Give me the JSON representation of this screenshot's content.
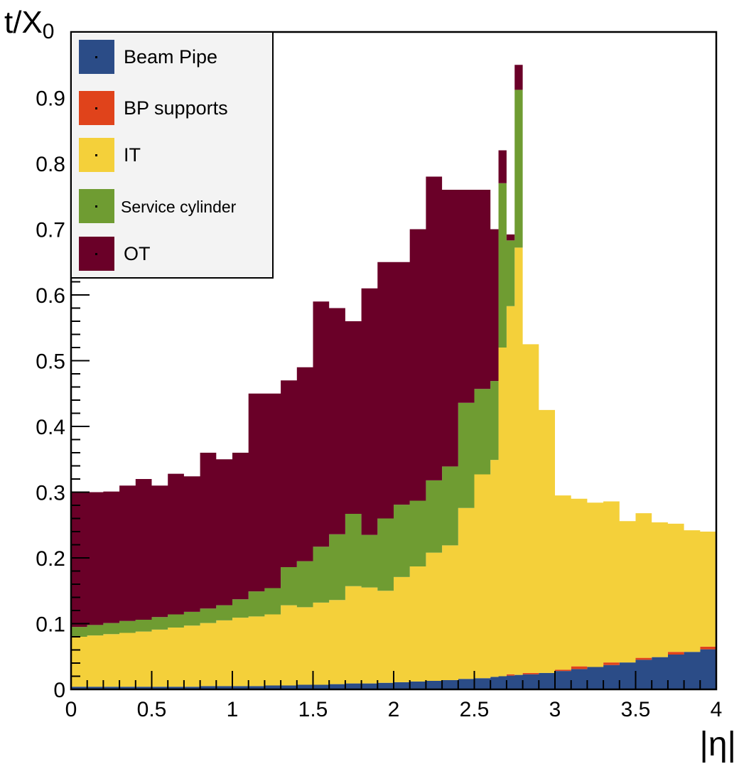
{
  "chart_data": {
    "type": "area",
    "stacked": true,
    "title": "",
    "xlabel": "|η|",
    "ylabel": "t/X",
    "ylabel_subscript": "0",
    "xlim": [
      0,
      4
    ],
    "ylim": [
      0,
      1.0
    ],
    "grid": false,
    "legend_position": "top-left",
    "x_ticks": [
      "0",
      "0.5",
      "1",
      "1.5",
      "2",
      "2.5",
      "3",
      "3.5",
      "4"
    ],
    "y_ticks": [
      "0",
      "0.1",
      "0.2",
      "0.3",
      "0.4",
      "0.5",
      "0.6",
      "0.7",
      "0.8",
      "0.9"
    ],
    "x": [
      0.0,
      0.1,
      0.2,
      0.3,
      0.4,
      0.5,
      0.6,
      0.7,
      0.8,
      0.9,
      1.0,
      1.1,
      1.2,
      1.3,
      1.4,
      1.5,
      1.6,
      1.7,
      1.8,
      1.9,
      2.0,
      2.1,
      2.2,
      2.3,
      2.4,
      2.5,
      2.6,
      2.65,
      2.7,
      2.75,
      2.8,
      2.9,
      3.0,
      3.1,
      3.2,
      3.3,
      3.4,
      3.5,
      3.6,
      3.7,
      3.8,
      3.9,
      4.0
    ],
    "series": [
      {
        "name": "Beam Pipe",
        "color": "#2b4c87",
        "values": [
          0.004,
          0.004,
          0.004,
          0.004,
          0.004,
          0.004,
          0.004,
          0.004,
          0.005,
          0.005,
          0.005,
          0.005,
          0.006,
          0.006,
          0.007,
          0.007,
          0.008,
          0.009,
          0.009,
          0.01,
          0.011,
          0.012,
          0.013,
          0.014,
          0.016,
          0.017,
          0.019,
          0.02,
          0.021,
          0.022,
          0.023,
          0.025,
          0.028,
          0.031,
          0.034,
          0.037,
          0.041,
          0.045,
          0.049,
          0.053,
          0.057,
          0.061,
          0.065
        ]
      },
      {
        "name": "BP supports",
        "color": "#e0431b",
        "values": [
          0,
          0,
          0,
          0,
          0,
          0,
          0,
          0,
          0,
          0,
          0,
          0,
          0,
          0,
          0,
          0,
          0,
          0,
          0,
          0,
          0,
          0,
          0,
          0,
          0,
          0,
          0,
          0,
          0.002,
          0,
          0.002,
          0,
          0.002,
          0.004,
          0,
          0.004,
          0,
          0.003,
          0,
          0.004,
          0,
          0.004,
          0
        ]
      },
      {
        "name": "IT",
        "color": "#f4d03a",
        "values": [
          0.076,
          0.078,
          0.08,
          0.082,
          0.084,
          0.087,
          0.09,
          0.093,
          0.096,
          0.1,
          0.104,
          0.106,
          0.108,
          0.122,
          0.118,
          0.125,
          0.128,
          0.148,
          0.146,
          0.14,
          0.16,
          0.175,
          0.195,
          0.205,
          0.26,
          0.31,
          0.33,
          0.5,
          0.56,
          0.65,
          0.5,
          0.4,
          0.265,
          0.255,
          0.25,
          0.245,
          0.215,
          0.22,
          0.205,
          0.195,
          0.185,
          0.175,
          0.17
        ]
      },
      {
        "name": "Service cylinder",
        "color": "#6f9c32",
        "values": [
          0.015,
          0.016,
          0.017,
          0.018,
          0.018,
          0.019,
          0.02,
          0.021,
          0.022,
          0.023,
          0.028,
          0.038,
          0.04,
          0.058,
          0.07,
          0.085,
          0.1,
          0.11,
          0.08,
          0.11,
          0.11,
          0.1,
          0.11,
          0.12,
          0.16,
          0.13,
          0.12,
          0.25,
          0.1,
          0.24,
          0.0,
          0,
          0,
          0,
          0,
          0,
          0,
          0,
          0,
          0,
          0,
          0,
          0
        ]
      },
      {
        "name": "OT",
        "color": "#6a0028",
        "values": [
          0.205,
          0.202,
          0.2,
          0.206,
          0.214,
          0.2,
          0.214,
          0.206,
          0.237,
          0.222,
          0.223,
          0.301,
          0.296,
          0.284,
          0.295,
          0.373,
          0.344,
          0.293,
          0.375,
          0.39,
          0.369,
          0.413,
          0.462,
          0.421,
          0.324,
          0.303,
          0.231,
          0.05,
          0.009,
          0.038,
          0.0,
          0,
          0,
          0,
          0,
          0,
          0,
          0,
          0,
          0,
          0,
          0,
          0
        ]
      }
    ]
  }
}
